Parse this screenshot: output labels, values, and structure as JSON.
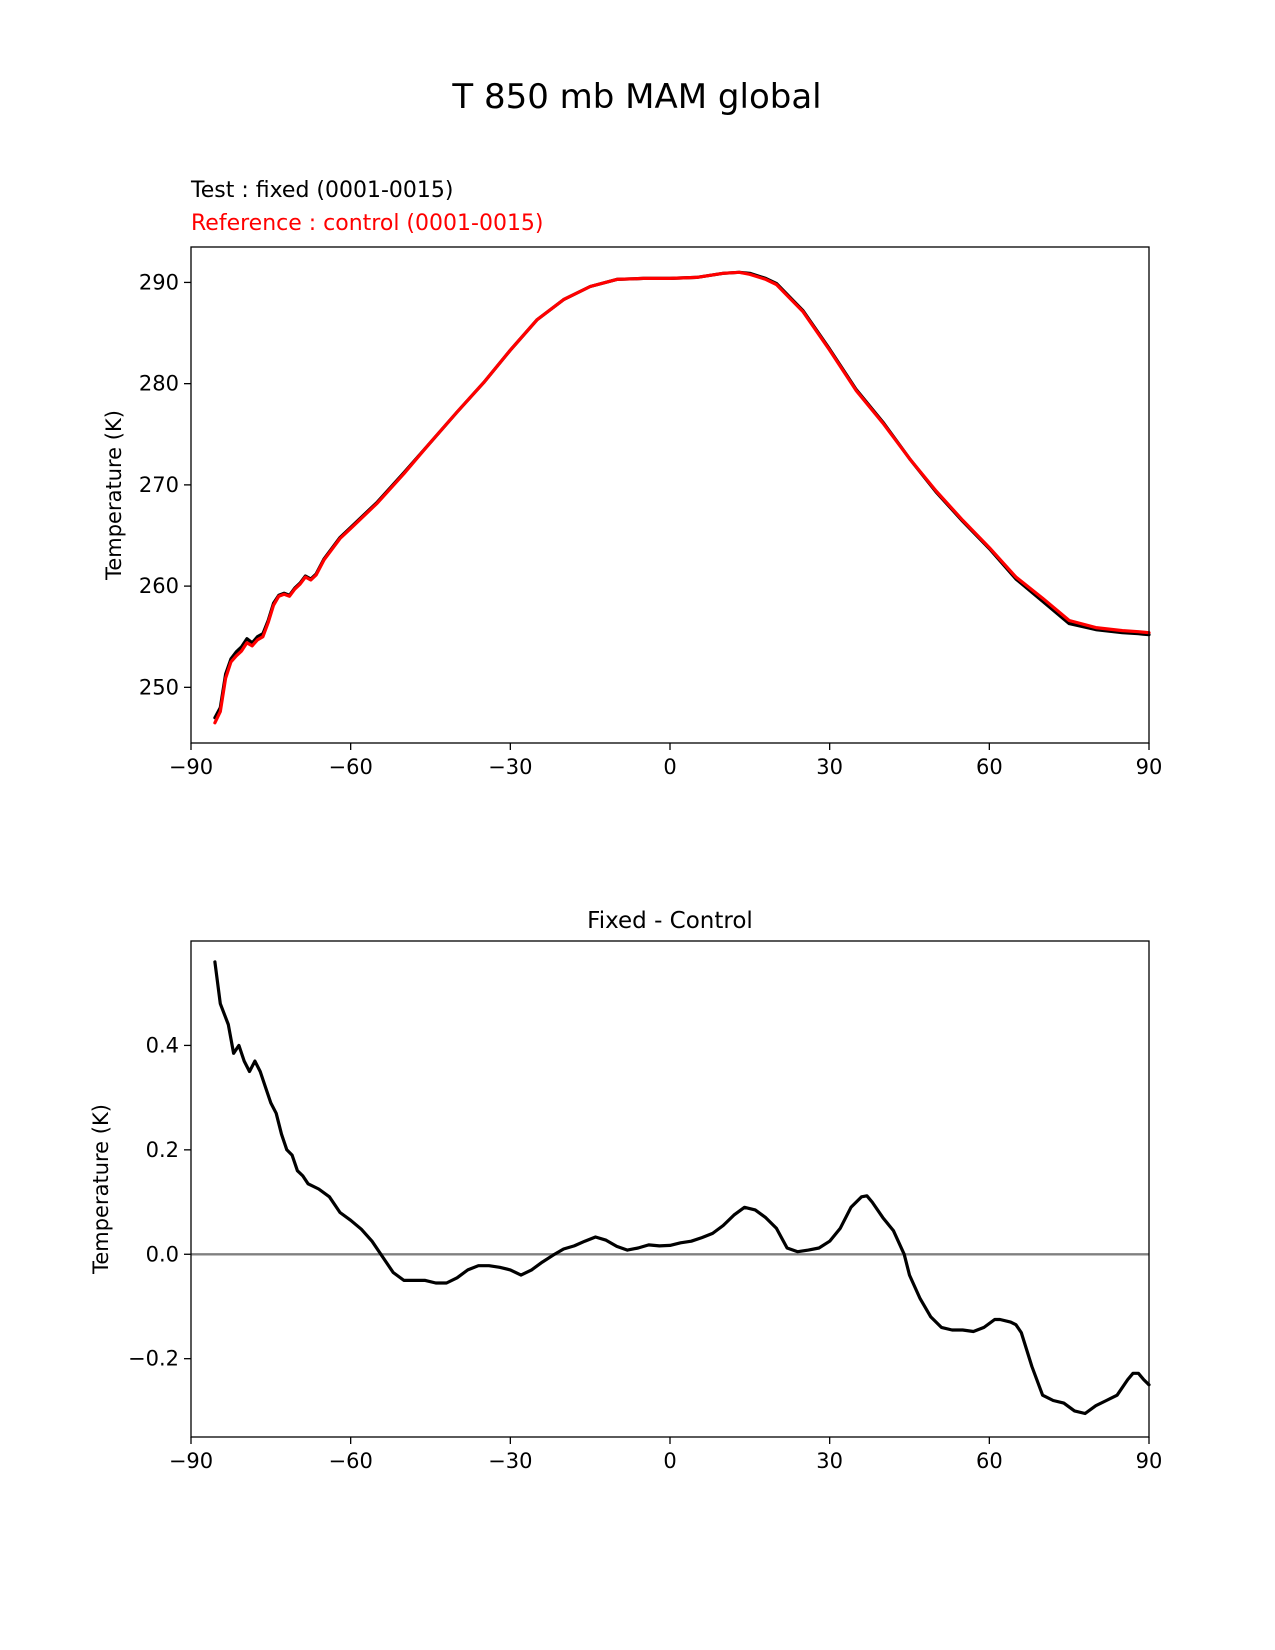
{
  "figure": {
    "title": "T 850 mb MAM global"
  },
  "chart_data": [
    {
      "type": "line",
      "test_label": "Test : fixed (0001-0015)",
      "reference_label": "Reference : control (0001-0015)",
      "xlabel": "",
      "ylabel": "Temperature (K)",
      "xlim": [
        -90,
        90
      ],
      "ylim": [
        244.5,
        293.5
      ],
      "xticks": [
        -90,
        -60,
        -30,
        0,
        30,
        60,
        90
      ],
      "xtick_labels": [
        "−90",
        "−60",
        "−30",
        "0",
        "30",
        "60",
        "90"
      ],
      "yticks": [
        250,
        260,
        270,
        280,
        290
      ],
      "ytick_labels": [
        "250",
        "260",
        "270",
        "280",
        "290"
      ],
      "grid": false,
      "series": [
        {
          "name": "Test : fixed (0001-0015)",
          "color": "#000000",
          "x": [
            -85.5,
            -84.5,
            -83.5,
            -82.5,
            -81.5,
            -80.5,
            -79.5,
            -78.5,
            -77.5,
            -76.5,
            -75.5,
            -74.5,
            -73.5,
            -72.5,
            -71.5,
            -70.5,
            -69.5,
            -68.5,
            -67.5,
            -66.5,
            -65,
            -62,
            -60,
            -55,
            -50,
            -45,
            -40,
            -35,
            -30,
            -25,
            -20,
            -15,
            -10,
            -5,
            0,
            5,
            10,
            13,
            15,
            18,
            20,
            25,
            30,
            35,
            40,
            45,
            50,
            55,
            60,
            65,
            70,
            75,
            80,
            85,
            88,
            90
          ],
          "y": [
            247.0,
            248.0,
            251.3,
            252.8,
            253.5,
            254.0,
            254.8,
            254.4,
            255.0,
            255.3,
            256.6,
            258.3,
            259.1,
            259.3,
            259.1,
            259.8,
            260.3,
            261.0,
            260.7,
            261.2,
            262.7,
            264.8,
            265.8,
            268.3,
            271.2,
            274.2,
            277.2,
            280.1,
            283.3,
            286.3,
            288.3,
            289.6,
            290.3,
            290.4,
            290.4,
            290.5,
            290.9,
            291.0,
            290.9,
            290.4,
            289.9,
            287.2,
            283.4,
            279.4,
            276.2,
            272.6,
            269.3,
            266.4,
            263.7,
            260.7,
            258.5,
            256.3,
            255.7,
            255.4,
            255.3,
            255.2
          ]
        },
        {
          "name": "Reference : control (0001-0015)",
          "color": "#ff0000",
          "x": [
            -85.5,
            -84.5,
            -83.5,
            -82.5,
            -81.5,
            -80.5,
            -79.5,
            -78.5,
            -77.5,
            -76.5,
            -75.5,
            -74.5,
            -73.5,
            -72.5,
            -71.5,
            -70.5,
            -69.5,
            -68.5,
            -67.5,
            -66.5,
            -65,
            -62,
            -60,
            -55,
            -50,
            -45,
            -40,
            -35,
            -30,
            -25,
            -20,
            -15,
            -10,
            -5,
            0,
            5,
            10,
            13,
            15,
            18,
            20,
            25,
            30,
            35,
            40,
            45,
            50,
            55,
            60,
            65,
            70,
            75,
            80,
            85,
            88,
            90
          ],
          "y": [
            246.5,
            247.6,
            250.9,
            252.5,
            253.1,
            253.6,
            254.4,
            254.1,
            254.7,
            255.0,
            256.4,
            258.1,
            259.0,
            259.2,
            259.0,
            259.7,
            260.2,
            260.9,
            260.6,
            261.1,
            262.6,
            264.7,
            265.7,
            268.2,
            271.1,
            274.2,
            277.2,
            280.1,
            283.3,
            286.3,
            288.3,
            289.6,
            290.3,
            290.4,
            290.4,
            290.5,
            290.9,
            291.0,
            290.8,
            290.3,
            289.8,
            287.1,
            283.3,
            279.3,
            276.1,
            272.6,
            269.4,
            266.5,
            263.8,
            260.9,
            258.8,
            256.6,
            255.9,
            255.6,
            255.5,
            255.4
          ]
        }
      ]
    },
    {
      "type": "line",
      "title": "Fixed - Control",
      "xlabel": "",
      "ylabel": "Temperature (K)",
      "xlim": [
        -90,
        90
      ],
      "ylim": [
        -0.35,
        0.6
      ],
      "xticks": [
        -90,
        -60,
        -30,
        0,
        30,
        60,
        90
      ],
      "xtick_labels": [
        "−90",
        "−60",
        "−30",
        "0",
        "30",
        "60",
        "90"
      ],
      "yticks": [
        -0.2,
        0.0,
        0.2,
        0.4
      ],
      "ytick_labels": [
        "−0.2",
        "0.0",
        "0.2",
        "0.4"
      ],
      "grid": false,
      "zero_line_color": "#808080",
      "series": [
        {
          "name": "Fixed - Control",
          "color": "#000000",
          "x": [
            -85.5,
            -84.5,
            -83,
            -82,
            -81,
            -80,
            -79,
            -78.5,
            -78,
            -77,
            -76,
            -75,
            -74,
            -73,
            -72,
            -71,
            -70,
            -69,
            -68,
            -66,
            -64,
            -62,
            -60,
            -58,
            -56,
            -54,
            -52,
            -50,
            -48,
            -46,
            -44,
            -42,
            -40,
            -38,
            -36,
            -34,
            -32,
            -30,
            -28,
            -26,
            -24,
            -22,
            -20,
            -18,
            -16,
            -14,
            -12,
            -10,
            -8,
            -6,
            -4,
            -2,
            0,
            2,
            4,
            6,
            8,
            10,
            12,
            14,
            16,
            18,
            20,
            22,
            24,
            26,
            28,
            30,
            32,
            34,
            36,
            37,
            38,
            40,
            42,
            44,
            45,
            47,
            49,
            51,
            53,
            55,
            57,
            59,
            61,
            62,
            64,
            65,
            66,
            68,
            70,
            72,
            74,
            76,
            78,
            80,
            82,
            84,
            86,
            87,
            88,
            89,
            90
          ],
          "y": [
            0.56,
            0.48,
            0.44,
            0.385,
            0.4,
            0.37,
            0.35,
            0.36,
            0.37,
            0.35,
            0.32,
            0.29,
            0.27,
            0.23,
            0.2,
            0.19,
            0.16,
            0.15,
            0.135,
            0.125,
            0.11,
            0.08,
            0.065,
            0.048,
            0.025,
            -0.005,
            -0.035,
            -0.05,
            -0.05,
            -0.05,
            -0.055,
            -0.055,
            -0.045,
            -0.03,
            -0.022,
            -0.022,
            -0.025,
            -0.03,
            -0.04,
            -0.03,
            -0.015,
            -0.002,
            0.01,
            0.016,
            0.025,
            0.033,
            0.027,
            0.015,
            0.008,
            0.012,
            0.018,
            0.016,
            0.017,
            0.022,
            0.025,
            0.032,
            0.04,
            0.055,
            0.075,
            0.09,
            0.085,
            0.07,
            0.05,
            0.012,
            0.005,
            0.008,
            0.012,
            0.025,
            0.05,
            0.09,
            0.11,
            0.112,
            0.1,
            0.07,
            0.045,
            0.0,
            -0.04,
            -0.085,
            -0.12,
            -0.14,
            -0.145,
            -0.145,
            -0.148,
            -0.14,
            -0.125,
            -0.125,
            -0.13,
            -0.135,
            -0.15,
            -0.215,
            -0.27,
            -0.28,
            -0.285,
            -0.3,
            -0.305,
            -0.29,
            -0.28,
            -0.27,
            -0.24,
            -0.228,
            -0.228,
            -0.24,
            -0.25
          ]
        }
      ]
    }
  ]
}
